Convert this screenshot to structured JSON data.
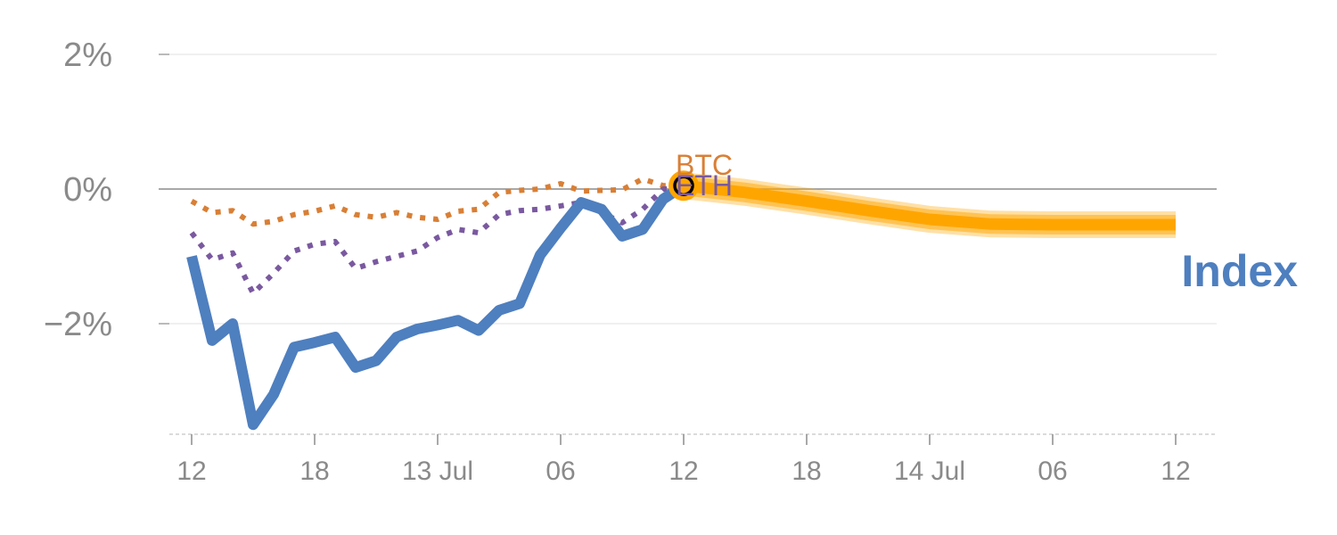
{
  "chart_data": {
    "type": "line",
    "title": "",
    "xlabel": "",
    "ylabel": "",
    "ylim": [
      -3.6,
      2.35
    ],
    "x_ticks": [
      {
        "i": 0,
        "label": "12"
      },
      {
        "i": 6,
        "label": "18"
      },
      {
        "i": 12,
        "label": "13 Jul"
      },
      {
        "i": 18,
        "label": "06"
      },
      {
        "i": 24,
        "label": "12"
      },
      {
        "i": 30,
        "label": "18"
      },
      {
        "i": 36,
        "label": "14 Jul"
      },
      {
        "i": 42,
        "label": "06"
      },
      {
        "i": 48,
        "label": "12"
      }
    ],
    "y_ticks": [
      {
        "value": 2,
        "label": "2%"
      },
      {
        "value": 0,
        "label": "0%"
      },
      {
        "value": -2,
        "label": "−2%"
      }
    ],
    "zero_line": 0,
    "series": [
      {
        "name": "BTC",
        "label": "BTC",
        "style": "dotted",
        "color": "#d97f35",
        "x": [
          0,
          1,
          2,
          3,
          4,
          5,
          6,
          7,
          8,
          9,
          10,
          11,
          12,
          13,
          14,
          15,
          16,
          17,
          18,
          19,
          20,
          21,
          22,
          23,
          24
        ],
        "values": [
          -0.18,
          -0.35,
          -0.32,
          -0.52,
          -0.48,
          -0.38,
          -0.33,
          -0.25,
          -0.38,
          -0.42,
          -0.35,
          -0.42,
          -0.45,
          -0.33,
          -0.3,
          -0.05,
          -0.02,
          0.0,
          0.08,
          -0.03,
          -0.02,
          -0.01,
          0.15,
          0.05,
          0.06
        ]
      },
      {
        "name": "ETH",
        "label": "ETH",
        "style": "dotted",
        "color": "#7a59a0",
        "x": [
          0,
          1,
          2,
          3,
          4,
          5,
          6,
          7,
          8,
          9,
          10,
          11,
          12,
          13,
          14,
          15,
          16,
          17,
          18,
          19,
          20,
          21,
          22,
          23,
          24
        ],
        "values": [
          -0.65,
          -1.05,
          -0.95,
          -1.55,
          -1.25,
          -0.92,
          -0.82,
          -0.78,
          -1.18,
          -1.08,
          -1.0,
          -0.92,
          -0.72,
          -0.6,
          -0.65,
          -0.38,
          -0.32,
          -0.3,
          -0.25,
          -0.2,
          -0.35,
          -0.5,
          -0.3,
          0.0,
          0.0
        ]
      },
      {
        "name": "Index",
        "label": "Index",
        "style": "solid",
        "color": "#4e7fbf",
        "x": [
          0,
          1,
          2,
          3,
          4,
          5,
          6,
          7,
          8,
          9,
          10,
          11,
          12,
          13,
          14,
          15,
          16,
          17,
          18,
          19,
          20,
          21,
          22,
          23,
          24
        ],
        "values": [
          -1.0,
          -2.25,
          -2.0,
          -3.5,
          -3.05,
          -2.35,
          -2.28,
          -2.2,
          -2.65,
          -2.55,
          -2.2,
          -2.08,
          -2.02,
          -1.95,
          -2.1,
          -1.8,
          -1.7,
          -0.98,
          -0.58,
          -0.2,
          -0.3,
          -0.7,
          -0.6,
          -0.15,
          0.05
        ]
      },
      {
        "name": "Forecast",
        "label": "",
        "style": "band",
        "color": "#ffa500",
        "x": [
          24,
          27,
          30,
          33,
          36,
          39,
          42,
          45,
          48
        ],
        "values": [
          0.05,
          -0.05,
          -0.18,
          -0.32,
          -0.45,
          -0.52,
          -0.53,
          -0.53,
          -0.53
        ]
      }
    ],
    "marker": {
      "x": 24,
      "y": 0.05,
      "color": "#ffa500"
    },
    "grid": true,
    "legend": "inline labels at line ends"
  }
}
